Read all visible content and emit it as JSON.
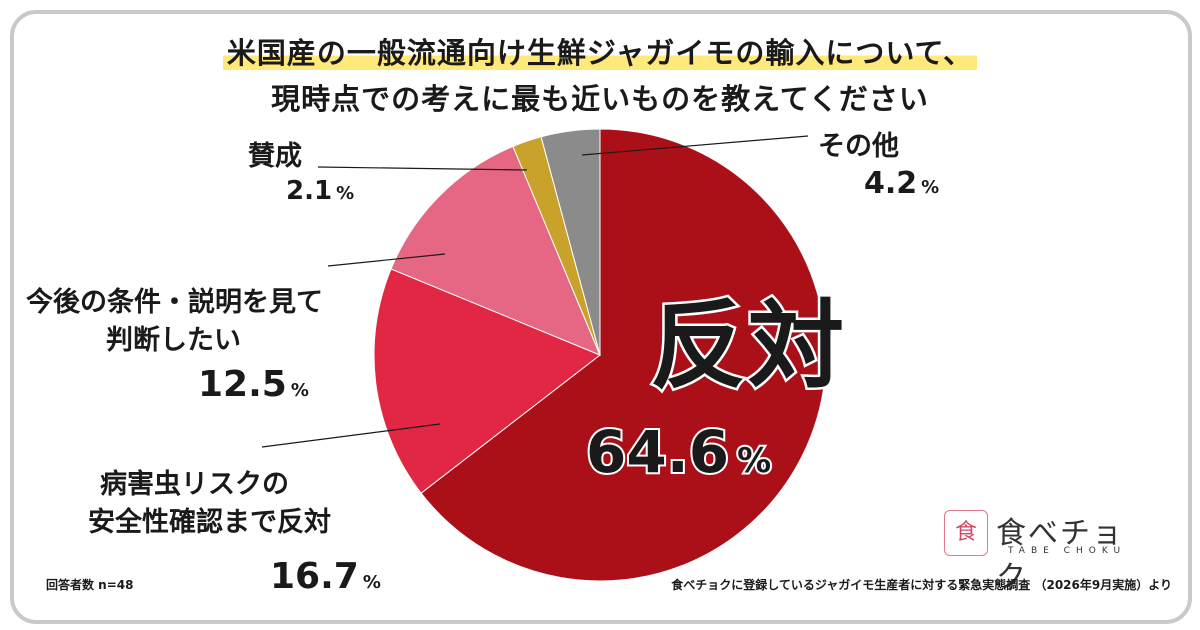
{
  "title": {
    "line1": "米国産の一般流通向け生鮮ジャガイモの輸入について、",
    "line2": "現時点での考えに最も近いものを教えてください"
  },
  "chart_data": {
    "type": "pie",
    "unit": "%",
    "slices": [
      {
        "label": "反対",
        "value": 64.6,
        "color": "#ab1018"
      },
      {
        "label": "病害虫リスクの安全性確認まで反対",
        "value": 16.7,
        "color": "#e12744"
      },
      {
        "label": "今後の条件・説明を見て判断したい",
        "value": 12.5,
        "color": "#e56783"
      },
      {
        "label": "賛成",
        "value": 2.1,
        "color": "#c9a22c"
      },
      {
        "label": "その他",
        "value": 4.2,
        "color": "#8b8b8b"
      }
    ]
  },
  "labels": {
    "oppose": {
      "name": "反対",
      "value": "64.6",
      "unit": "%"
    },
    "pest": {
      "line1": "病害虫リスクの",
      "line2": "安全性確認まで反対",
      "value": "16.7",
      "unit": "%"
    },
    "conditions": {
      "line1": "今後の条件・説明を見て",
      "line2": "判断したい",
      "value": "12.5",
      "unit": "%"
    },
    "agree": {
      "name": "賛成",
      "value": "2.1",
      "unit": "%"
    },
    "other": {
      "name": "その他",
      "value": "4.2",
      "unit": "%"
    }
  },
  "footer": {
    "respondents": "回答者数 n=48",
    "source": "食べチョクに登録しているジャガイモ生産者に対する緊急実態調査 （2026年9月実施）より"
  },
  "logo": {
    "mark": "食",
    "text": "食べチョク",
    "sub": "TABE CHOKU",
    "accent": "#d24a64"
  }
}
